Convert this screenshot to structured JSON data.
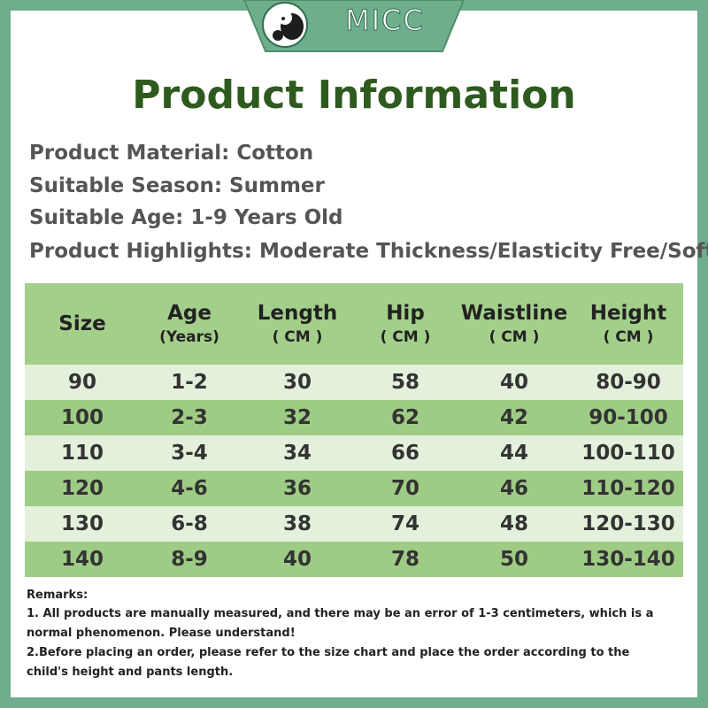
{
  "brand": "MICC",
  "title": "Product Information",
  "info": [
    "Product Material: Cotton",
    "Suitable Season: Summer",
    "Suitable Age: 1-9 Years Old",
    "Product Highlights: Moderate Thickness/Elasticity Free/Soft"
  ],
  "table": {
    "headers": [
      {
        "label": "Size"
      },
      {
        "label": "Age",
        "sub": "(Years)"
      },
      {
        "label": "Length",
        "sub": "( CM )"
      },
      {
        "label": "Hip",
        "sub": "( CM )"
      },
      {
        "label": "Waistline",
        "sub": "( CM )"
      },
      {
        "label": "Height",
        "sub": "( CM )"
      }
    ],
    "rows": [
      [
        90,
        "1-2",
        30,
        58,
        40,
        "80-90"
      ],
      [
        100,
        "2-3",
        32,
        62,
        42,
        "90-100"
      ],
      [
        110,
        "3-4",
        34,
        66,
        44,
        "100-110"
      ],
      [
        120,
        "4-6",
        36,
        70,
        46,
        "110-120"
      ],
      [
        130,
        "6-8",
        38,
        74,
        48,
        "120-130"
      ],
      [
        140,
        "8-9",
        40,
        78,
        50,
        "130-140"
      ]
    ]
  },
  "remarks": [
    "Remarks:",
    "1. All products are manually measured, and there may be an error of 1-3 centimeters, which is a normal phenomenon. Please understand!",
    "2.Before placing an order, please refer to the size chart and place the order according to the child's height and pants length."
  ]
}
